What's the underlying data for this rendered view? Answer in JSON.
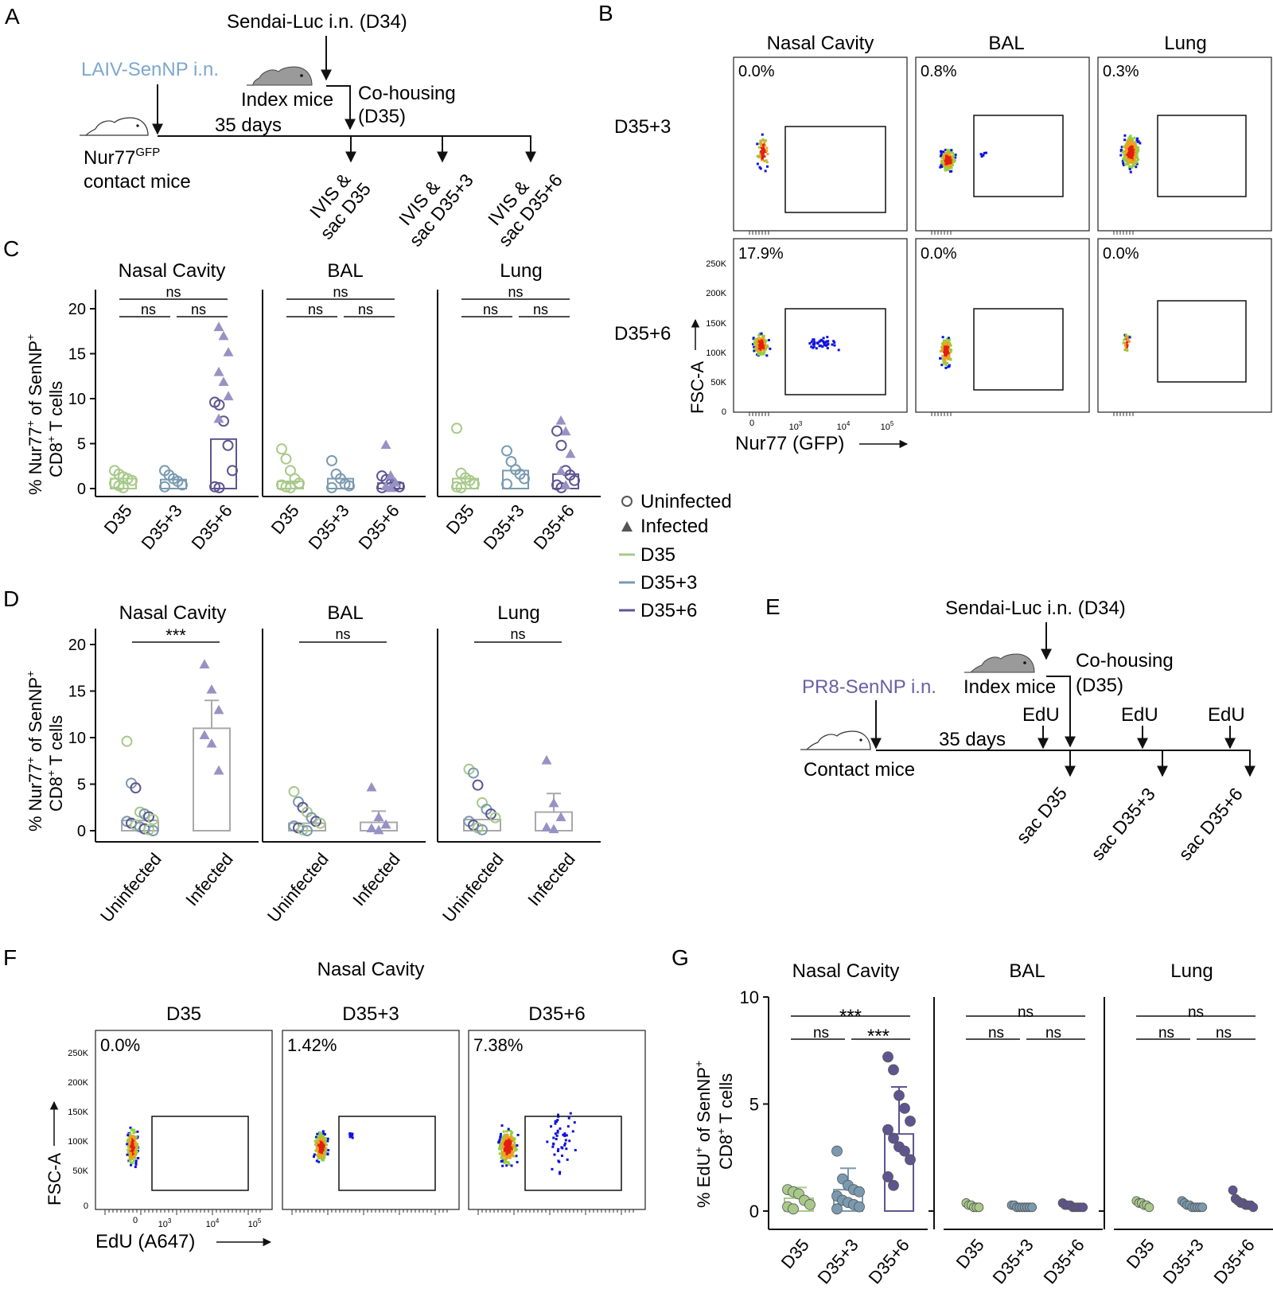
{
  "figure": {
    "panel_letters": [
      "A",
      "B",
      "C",
      "D",
      "E",
      "F",
      "G"
    ]
  },
  "panel_a": {
    "sendai_label": "Sendai-Luc i.n. (D34)",
    "laiv_label": "LAIV-SenNP i.n.",
    "index_mice": "Index mice",
    "cohousing_1": "Co-housing",
    "cohousing_2": "(D35)",
    "days": "35 days",
    "contact_1": "Nur77",
    "contact_sup": "GFP",
    "contact_2": "contact mice",
    "timepoints": [
      {
        "line1": "IVIS &",
        "line2": "sac D35"
      },
      {
        "line1": "IVIS &",
        "line2": "sac D35+3"
      },
      {
        "line1": "IVIS &",
        "line2": "sac D35+6"
      }
    ],
    "colors": {
      "laiv": "#7ea7cf"
    }
  },
  "panel_b": {
    "columns": [
      "Nasal Cavity",
      "BAL",
      "Lung"
    ],
    "rows": [
      "D35+3",
      "D35+6"
    ],
    "percents": [
      [
        "0.0%",
        "0.8%",
        "0.3%"
      ],
      [
        "17.9%",
        "0.0%",
        "0.0%"
      ]
    ],
    "y_ticks": [
      "250K",
      "200K",
      "150K",
      "100K",
      "50K",
      "0"
    ],
    "x_ticks": [
      "0",
      "10",
      "10",
      "10"
    ],
    "x_tick_exps": [
      "",
      "3",
      "4",
      "5"
    ],
    "y_axis_label": "FSC-A",
    "x_axis_label": "Nur77 (GFP)"
  },
  "panel_c": {
    "y_label_1": "% Nur77",
    "y_label_sup": "+",
    "y_label_2": " of SenNP",
    "y_label_sup2": "+",
    "y_label_3": "CD8",
    "y_label_sup3": "+",
    "y_label_4": " T cells",
    "y_ticks": [
      "0",
      "5",
      "10",
      "15",
      "20"
    ],
    "sig": "ns"
  },
  "panel_d": {
    "sig_nasal": "***",
    "sig_other": "ns"
  },
  "legend": {
    "uninfected": "Uninfected",
    "infected": "Infected",
    "d35": "D35",
    "d353": "D35+3",
    "d356": "D35+6"
  },
  "panel_e": {
    "sendai_label": "Sendai-Luc i.n. (D34)",
    "pr8_label": "PR8-SenNP i.n.",
    "index_mice": "Index mice",
    "cohousing_1": "Co-housing",
    "cohousing_2": "(D35)",
    "days": "35 days",
    "contact": "Contact mice",
    "edu": "EdU",
    "timepoints": [
      "sac D35",
      "sac D35+3",
      "sac D35+6"
    ],
    "colors": {
      "pr8": "#6a5fa5"
    }
  },
  "panel_f": {
    "title": "Nasal Cavity",
    "columns": [
      "D35",
      "D35+3",
      "D35+6"
    ],
    "percents": [
      "0.0%",
      "1.42%",
      "7.38%"
    ],
    "y_ticks": [
      "250K",
      "200K",
      "150K",
      "100K",
      "50K",
      "0"
    ],
    "y_axis_label": "FSC-A",
    "x_axis_label": "EdU (A647)"
  },
  "panel_g": {
    "y_label_1": "% EdU",
    "y_label_sup": "+",
    "y_label_2": " of SenNP",
    "y_label_sup2": "+",
    "y_label_3": "CD8",
    "y_label_sup3": "+",
    "y_label_4": " T cells",
    "y_ticks": [
      "0",
      "5",
      "10"
    ],
    "sig_nasal_top": "***",
    "sig_nasal_left": "ns",
    "sig_nasal_right": "***",
    "sig": "ns"
  },
  "chart_data": [
    {
      "type": "bar",
      "panel": "C",
      "facets": [
        "Nasal Cavity",
        "BAL",
        "Lung"
      ],
      "categories": [
        "D35",
        "D35+3",
        "D35+6"
      ],
      "ylim": [
        0,
        20
      ],
      "series": [
        {
          "name": "Nasal Cavity",
          "values": [
            1.1,
            1.0,
            5.5
          ],
          "points": [
            {
              "cat": "D35",
              "uninfected": [
                2.0,
                1.6,
                1.3,
                1.1,
                0.9,
                0.6,
                0.3,
                0.1
              ],
              "infected": []
            },
            {
              "cat": "D35+3",
              "uninfected": [
                2.0,
                1.5,
                1.1,
                0.8,
                0.4,
                0.2
              ],
              "infected": []
            },
            {
              "cat": "D35+6",
              "uninfected": [
                9.6,
                9.3,
                7.5,
                4.8,
                2.0,
                0.2,
                0.1
              ],
              "infected": [
                18.0,
                17.0,
                15.2,
                13.0,
                11.9,
                10.3,
                7.8
              ]
            }
          ]
        },
        {
          "name": "BAL",
          "values": [
            0.8,
            1.1,
            0.6
          ],
          "points": [
            {
              "cat": "D35",
              "uninfected": [
                4.4,
                3.3,
                2.0,
                1.1,
                0.6,
                0.4,
                0.2,
                0.1
              ],
              "infected": []
            },
            {
              "cat": "D35+3",
              "uninfected": [
                3.1,
                1.6,
                1.1,
                0.5,
                0.3,
                0.1
              ],
              "infected": []
            },
            {
              "cat": "D35+6",
              "uninfected": [
                1.4,
                1.0,
                0.5,
                0.3,
                0.2,
                0.1
              ],
              "infected": [
                4.9,
                1.5,
                0.7,
                0.3,
                0.1
              ]
            }
          ]
        },
        {
          "name": "Lung",
          "values": [
            1.1,
            2.0,
            1.6
          ],
          "points": [
            {
              "cat": "D35",
              "uninfected": [
                6.7,
                1.7,
                1.2,
                0.9,
                0.5,
                0.2,
                0.1
              ],
              "infected": []
            },
            {
              "cat": "D35+3",
              "uninfected": [
                4.2,
                3.0,
                2.1,
                1.6,
                1.1,
                0.5
              ],
              "infected": []
            },
            {
              "cat": "D35+6",
              "uninfected": [
                6.4,
                4.8,
                2.0,
                1.5,
                0.9,
                0.4,
                0.1
              ],
              "infected": [
                7.6,
                6.4,
                3.9,
                2.0,
                0.4
              ]
            }
          ]
        }
      ]
    },
    {
      "type": "bar",
      "panel": "D",
      "facets": [
        "Nasal Cavity",
        "BAL",
        "Lung"
      ],
      "categories": [
        "Uninfected",
        "Infected"
      ],
      "ylim": [
        0,
        20
      ],
      "series": [
        {
          "name": "Nasal Cavity",
          "values": [
            1.1,
            11.0
          ],
          "error": [
            null,
            3.0
          ],
          "points": [
            [
              9.6,
              5.1,
              4.6,
              2.0,
              1.8,
              1.5,
              1.2,
              1.0,
              0.8,
              0.6,
              0.4,
              0.2,
              0.1,
              0.0
            ],
            [
              17.9,
              15.2,
              13.0,
              10.3,
              9.4,
              6.5
            ]
          ]
        },
        {
          "name": "BAL",
          "values": [
            0.8,
            0.9
          ],
          "error": [
            null,
            1.2
          ],
          "points": [
            [
              4.2,
              3.1,
              2.5,
              2.0,
              1.4,
              1.0,
              0.8,
              0.5,
              0.3,
              0.1,
              0.0
            ],
            [
              4.7,
              1.5,
              0.7,
              0.3,
              0.1
            ]
          ]
        },
        {
          "name": "Lung",
          "values": [
            1.2,
            2.0
          ],
          "error": [
            null,
            2.0
          ],
          "points": [
            [
              6.6,
              6.2,
              4.9,
              3.0,
              2.3,
              1.8,
              1.4,
              1.0,
              0.6,
              0.3,
              0.1
            ],
            [
              7.6,
              3.0,
              1.5,
              0.4,
              0.2
            ]
          ]
        }
      ]
    },
    {
      "type": "bar",
      "panel": "G",
      "facets": [
        "Nasal Cavity",
        "BAL",
        "Lung"
      ],
      "categories": [
        "D35",
        "D35+3",
        "D35+6"
      ],
      "ylim": [
        0,
        10
      ],
      "series": [
        {
          "name": "Nasal Cavity",
          "values": [
            0.6,
            1.0,
            3.6
          ],
          "error": [
            0.5,
            1.0,
            2.2
          ],
          "points": [
            [
              1.0,
              0.9,
              0.8,
              0.5,
              0.3,
              0.2,
              0.1
            ],
            [
              2.8,
              1.5,
              1.2,
              1.0,
              0.9,
              0.7,
              0.5,
              0.4,
              0.3,
              0.2,
              0.1
            ],
            [
              7.2,
              6.6,
              5.4,
              4.8,
              4.2,
              3.8,
              3.4,
              3.0,
              2.8,
              2.4,
              1.6,
              1.2
            ]
          ]
        },
        {
          "name": "BAL",
          "values": [
            0.2,
            0.15,
            0.2
          ],
          "error": [
            0,
            0,
            0
          ],
          "points": [
            [
              0.3,
              0.2,
              0.2,
              0.1,
              0.1,
              0.1
            ],
            [
              0.2,
              0.2,
              0.1,
              0.1,
              0.1,
              0.1,
              0.1,
              0.1,
              0.1
            ],
            [
              0.3,
              0.2,
              0.2,
              0.2,
              0.1,
              0.1,
              0.1,
              0.1,
              0.1
            ]
          ]
        },
        {
          "name": "Lung",
          "values": [
            0.3,
            0.2,
            0.3
          ],
          "error": [
            0,
            0,
            0
          ],
          "points": [
            [
              0.4,
              0.3,
              0.3,
              0.2,
              0.2,
              0.1
            ],
            [
              0.4,
              0.3,
              0.2,
              0.2,
              0.1,
              0.1,
              0.1,
              0.1,
              0.1
            ],
            [
              0.9,
              0.5,
              0.4,
              0.3,
              0.3,
              0.2,
              0.2,
              0.2,
              0.1
            ]
          ]
        }
      ]
    }
  ]
}
